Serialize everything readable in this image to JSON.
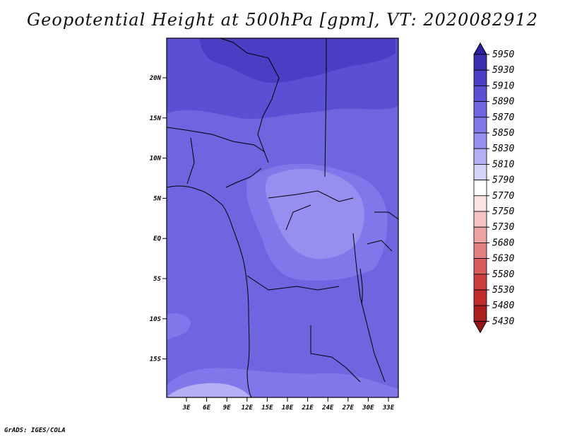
{
  "title": "Geopotential Height at 500hPa [gpm], VT: 2020082912",
  "credit": "GrADS: IGES/COLA",
  "map": {
    "lat_ticks": [
      "20N",
      "15N",
      "10N",
      "5N",
      "EQ",
      "5S",
      "10S",
      "15S"
    ],
    "lon_ticks": [
      "3E",
      "6E",
      "9E",
      "12E",
      "15E",
      "18E",
      "21E",
      "24E",
      "27E",
      "30E",
      "33E"
    ]
  },
  "colorbar": {
    "levels": [
      "5950",
      "5930",
      "5910",
      "5890",
      "5870",
      "5850",
      "5830",
      "5810",
      "5790",
      "5770",
      "5750",
      "5730",
      "5680",
      "5630",
      "5580",
      "5530",
      "5480",
      "5430"
    ],
    "colors": [
      "#2b1f9c",
      "#3a2eb0",
      "#4a3ec4",
      "#5a50d4",
      "#6e65e0",
      "#8078ea",
      "#968ff0",
      "#b4aef5",
      "#d6d3fb",
      "#ffffff",
      "#fbe3e3",
      "#f6c4c4",
      "#efa3a3",
      "#e57e7e",
      "#db5a5a",
      "#cf3e3e",
      "#c12b2b",
      "#ad1f1f",
      "#931717"
    ]
  }
}
